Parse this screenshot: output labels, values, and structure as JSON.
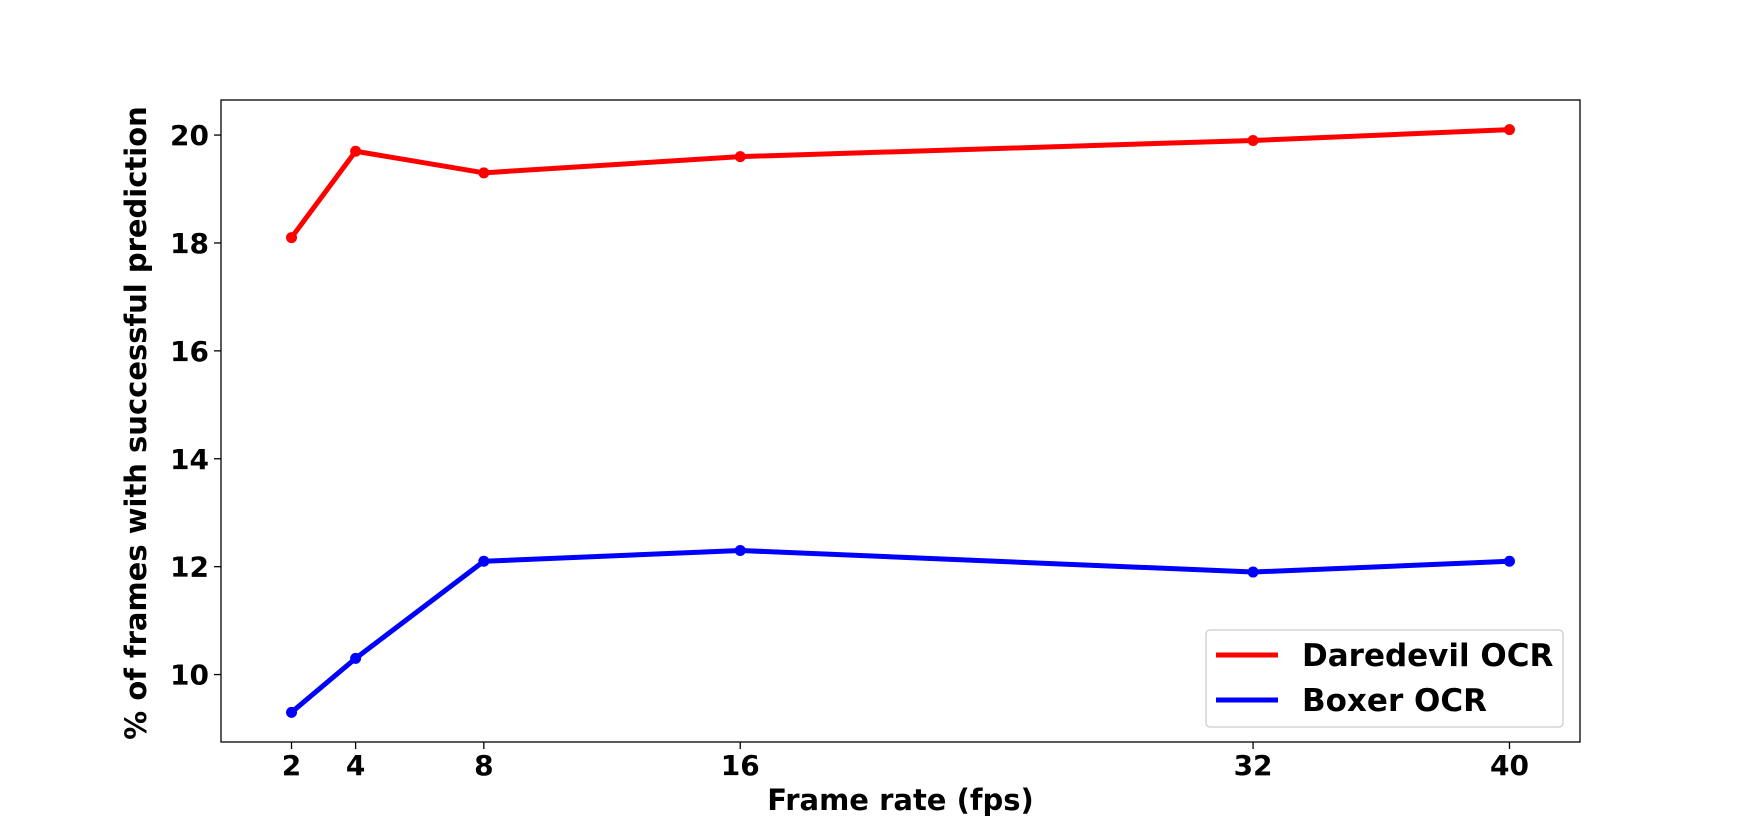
{
  "chart_data": {
    "type": "line",
    "title": "",
    "xlabel": "Frame rate (fps)",
    "ylabel": "% of frames with successful prediction",
    "x": [
      2,
      4,
      8,
      16,
      32,
      40
    ],
    "xticks": [
      2,
      4,
      8,
      16,
      32,
      40
    ],
    "xlim": [
      -0.2,
      42.2
    ],
    "yticks": [
      10,
      12,
      14,
      16,
      18,
      20
    ],
    "ylim": [
      8.75,
      20.65
    ],
    "grid": false,
    "legend_position": "lower-right",
    "series": [
      {
        "name": "Daredevil OCR",
        "color": "#ff0000",
        "values": [
          18.1,
          19.7,
          19.3,
          19.6,
          19.9,
          20.1
        ]
      },
      {
        "name": "Boxer OCR",
        "color": "#0000ff",
        "values": [
          9.3,
          10.3,
          12.1,
          12.3,
          11.9,
          12.1
        ]
      }
    ]
  }
}
